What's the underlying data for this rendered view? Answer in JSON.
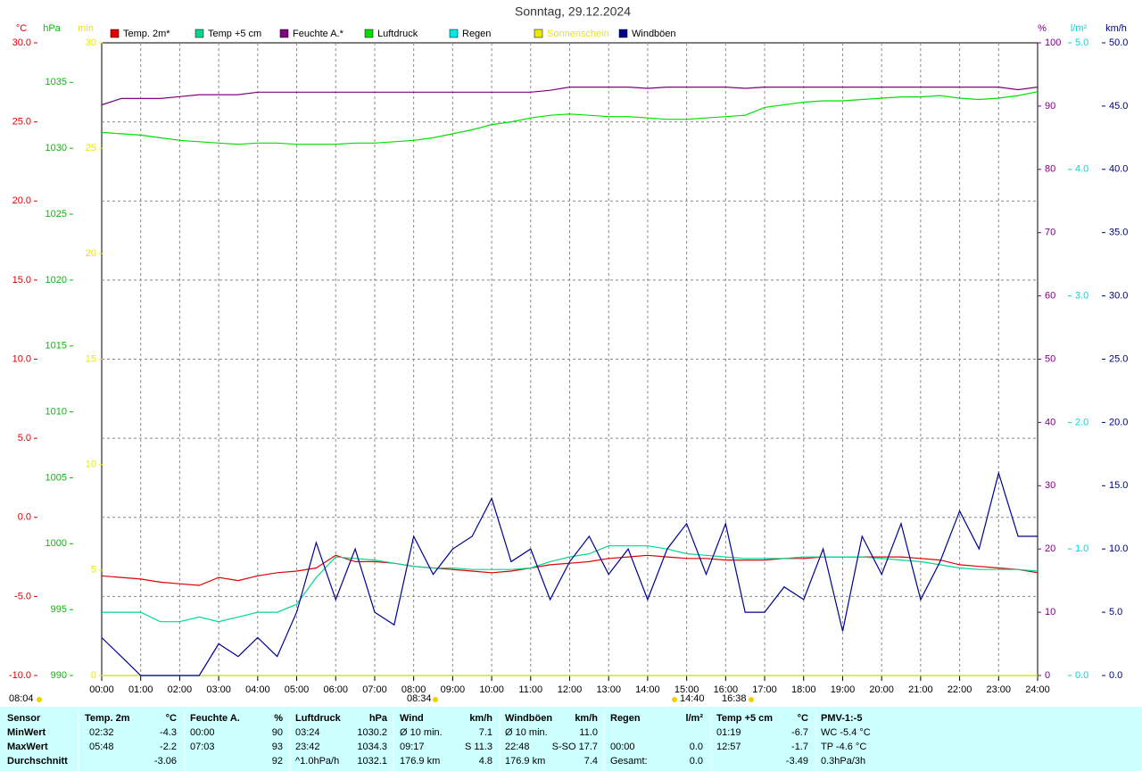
{
  "chart_data": {
    "type": "line",
    "title": "Sonntag, 29.12.2024",
    "x": [
      0,
      0.5,
      1,
      1.5,
      2,
      2.5,
      3,
      3.5,
      4,
      4.5,
      5,
      5.5,
      6,
      6.5,
      7,
      7.5,
      8,
      8.5,
      9,
      9.5,
      10,
      10.5,
      11,
      11.5,
      12,
      12.5,
      13,
      13.5,
      14,
      14.5,
      15,
      15.5,
      16,
      16.5,
      17,
      17.5,
      18,
      18.5,
      19,
      19.5,
      20,
      20.5,
      21,
      21.5,
      22,
      22.5,
      23,
      23.5,
      24
    ],
    "xlim": [
      0,
      24
    ],
    "xticks": [
      {
        "value": 0,
        "label": "00:00"
      },
      {
        "value": 1,
        "label": "01:00"
      },
      {
        "value": 2,
        "label": "02:00"
      },
      {
        "value": 3,
        "label": "03:00"
      },
      {
        "value": 4,
        "label": "04:00"
      },
      {
        "value": 5,
        "label": "05:00"
      },
      {
        "value": 6,
        "label": "06:00"
      },
      {
        "value": 7,
        "label": "07:00"
      },
      {
        "value": 8,
        "label": "08:00"
      },
      {
        "value": 9,
        "label": "09:00"
      },
      {
        "value": 10,
        "label": "10:00"
      },
      {
        "value": 11,
        "label": "11:00"
      },
      {
        "value": 12,
        "label": "12:00"
      },
      {
        "value": 13,
        "label": "13:00"
      },
      {
        "value": 14,
        "label": "14:00"
      },
      {
        "value": 15,
        "label": "15:00"
      },
      {
        "value": 16,
        "label": "16:00"
      },
      {
        "value": 17,
        "label": "17:00"
      },
      {
        "value": 18,
        "label": "18:00"
      },
      {
        "value": 19,
        "label": "19:00"
      },
      {
        "value": 20,
        "label": "20:00"
      },
      {
        "value": 21,
        "label": "21:00"
      },
      {
        "value": 22,
        "label": "22:00"
      },
      {
        "value": 23,
        "label": "23:00"
      },
      {
        "value": 24,
        "label": "24:00"
      }
    ],
    "grid": true,
    "axes": [
      {
        "name": "°C",
        "color": "#e00000",
        "lim": [
          -10,
          30
        ],
        "ticks": [
          {
            "value": -10,
            "label": "-10.0"
          },
          {
            "value": -5,
            "label": "-5.0"
          },
          {
            "value": 0,
            "label": "0.0"
          },
          {
            "value": 5,
            "label": "5.0"
          },
          {
            "value": 10,
            "label": "10.0"
          },
          {
            "value": 15,
            "label": "15.0"
          },
          {
            "value": 20,
            "label": "20.0"
          },
          {
            "value": 25,
            "label": "25.0"
          },
          {
            "value": 30,
            "label": "30.0"
          }
        ]
      },
      {
        "name": "hPa",
        "color": "#00c000",
        "lim": [
          990,
          1038
        ],
        "ticks": [
          990,
          995,
          1000,
          1005,
          1010,
          1015,
          1020,
          1025,
          1030,
          1035
        ]
      },
      {
        "name": "min",
        "color": "#e8e800",
        "lim": [
          0,
          30
        ],
        "ticks": [
          0,
          5,
          10,
          15,
          20,
          25,
          30
        ]
      },
      {
        "name": "%",
        "color": "#800080",
        "lim": [
          0,
          100
        ],
        "ticks": [
          0,
          10,
          20,
          30,
          40,
          50,
          60,
          70,
          80,
          90,
          100
        ]
      },
      {
        "name": "l/m²",
        "color": "#00d8d8",
        "lim": [
          0,
          5
        ],
        "ticks": [
          {
            "value": 0,
            "label": "0.0"
          },
          {
            "value": 1,
            "label": "1.0"
          },
          {
            "value": 2,
            "label": "2.0"
          },
          {
            "value": 3,
            "label": "3.0"
          },
          {
            "value": 4,
            "label": "4.0"
          },
          {
            "value": 5,
            "label": "5.0"
          }
        ]
      },
      {
        "name": "km/h",
        "color": "#000080",
        "lim": [
          0,
          50
        ],
        "ticks": [
          {
            "value": 0,
            "label": "0.0"
          },
          {
            "value": 5,
            "label": "5.0"
          },
          {
            "value": 10,
            "label": "10.0"
          },
          {
            "value": 15,
            "label": "15.0"
          },
          {
            "value": 20,
            "label": "20.0"
          },
          {
            "value": 25,
            "label": "25.0"
          },
          {
            "value": 30,
            "label": "30.0"
          },
          {
            "value": 35,
            "label": "35.0"
          },
          {
            "value": 40,
            "label": "40.0"
          },
          {
            "value": 45,
            "label": "45.0"
          },
          {
            "value": 50,
            "label": "50.0"
          }
        ]
      }
    ],
    "series": [
      {
        "name": "Temp. 2m*",
        "color": "#e00000",
        "axis": 0,
        "values": [
          -3.7,
          -3.8,
          -3.9,
          -4.1,
          -4.2,
          -4.3,
          -3.8,
          -4.0,
          -3.7,
          -3.5,
          -3.4,
          -3.2,
          -2.4,
          -2.8,
          -2.8,
          -2.9,
          -3.1,
          -3.2,
          -3.3,
          -3.4,
          -3.5,
          -3.4,
          -3.2,
          -3.0,
          -2.9,
          -2.8,
          -2.6,
          -2.5,
          -2.4,
          -2.5,
          -2.6,
          -2.6,
          -2.7,
          -2.7,
          -2.7,
          -2.6,
          -2.6,
          -2.5,
          -2.5,
          -2.5,
          -2.5,
          -2.5,
          -2.6,
          -2.7,
          -3.0,
          -3.1,
          -3.2,
          -3.3,
          -3.5
        ]
      },
      {
        "name": "Temp +5 cm",
        "color": "#00d890",
        "axis": 0,
        "values": [
          -6.0,
          -6.0,
          -6.0,
          -6.6,
          -6.6,
          -6.3,
          -6.6,
          -6.3,
          -6.0,
          -6.0,
          -5.5,
          -3.8,
          -2.5,
          -2.6,
          -2.7,
          -2.9,
          -3.1,
          -3.2,
          -3.2,
          -3.3,
          -3.3,
          -3.3,
          -3.2,
          -2.8,
          -2.5,
          -2.3,
          -1.8,
          -1.8,
          -1.8,
          -2.0,
          -2.3,
          -2.4,
          -2.5,
          -2.6,
          -2.6,
          -2.6,
          -2.5,
          -2.5,
          -2.5,
          -2.5,
          -2.6,
          -2.7,
          -2.8,
          -3.0,
          -3.2,
          -3.3,
          -3.3,
          -3.3,
          -3.4
        ]
      },
      {
        "name": "Feuchte A.*",
        "color": "#800080",
        "axis": 3,
        "values": [
          90.2,
          91.2,
          91.2,
          91.2,
          91.5,
          91.8,
          91.8,
          91.8,
          92.2,
          92.2,
          92.2,
          92.2,
          92.2,
          92.2,
          92.2,
          92.2,
          92.2,
          92.2,
          92.2,
          92.2,
          92.2,
          92.2,
          92.2,
          92.5,
          93.0,
          93.0,
          93.0,
          93.0,
          92.8,
          93.0,
          93.0,
          93.0,
          93.0,
          92.8,
          93.0,
          93.0,
          93.0,
          93.0,
          93.0,
          93.0,
          93.0,
          93.0,
          93.0,
          93.0,
          93.0,
          93.0,
          93.0,
          92.6,
          93.0
        ]
      },
      {
        "name": "Luftdruck",
        "color": "#00e000",
        "axis": 1,
        "values": [
          1031.2,
          1031.1,
          1031.0,
          1030.8,
          1030.6,
          1030.5,
          1030.4,
          1030.3,
          1030.4,
          1030.4,
          1030.3,
          1030.3,
          1030.3,
          1030.4,
          1030.4,
          1030.5,
          1030.6,
          1030.8,
          1031.1,
          1031.4,
          1031.8,
          1032.0,
          1032.3,
          1032.5,
          1032.6,
          1032.5,
          1032.4,
          1032.4,
          1032.3,
          1032.2,
          1032.2,
          1032.3,
          1032.4,
          1032.5,
          1033.1,
          1033.3,
          1033.5,
          1033.6,
          1033.6,
          1033.7,
          1033.8,
          1033.9,
          1033.9,
          1034.0,
          1033.8,
          1033.7,
          1033.8,
          1034.0,
          1034.3
        ]
      },
      {
        "name": "Regen",
        "color": "#00e8e8",
        "axis": 4,
        "values": [
          0,
          0,
          0,
          0,
          0,
          0,
          0,
          0,
          0,
          0,
          0,
          0,
          0,
          0,
          0,
          0,
          0,
          0,
          0,
          0,
          0,
          0,
          0,
          0,
          0,
          0,
          0,
          0,
          0,
          0,
          0,
          0,
          0,
          0,
          0,
          0,
          0,
          0,
          0,
          0,
          0,
          0,
          0,
          0,
          0,
          0,
          0,
          0,
          0
        ]
      },
      {
        "name": "Sonnenschein",
        "color": "#e8e800",
        "axis": 2,
        "values": [
          0,
          0,
          0,
          0,
          0,
          0,
          0,
          0,
          0,
          0,
          0,
          0,
          0,
          0,
          0,
          0,
          0,
          0,
          0,
          0,
          0,
          0,
          0,
          0,
          0,
          0,
          0,
          0,
          0,
          0,
          0,
          0,
          0,
          0,
          0,
          0,
          0,
          0,
          0,
          0,
          0,
          0,
          0,
          0,
          0,
          0,
          0,
          0,
          0
        ]
      },
      {
        "name": "Windböen",
        "color": "#000090",
        "axis": 5,
        "values": [
          3.0,
          1.5,
          0,
          0,
          0,
          0,
          2.5,
          1.5,
          3.0,
          1.5,
          5.0,
          10.5,
          6.0,
          10.0,
          5.0,
          4.0,
          11.0,
          8.0,
          10.0,
          11.0,
          14.0,
          9.0,
          10.0,
          6.0,
          9.0,
          11.0,
          8.0,
          10.0,
          6.0,
          10.0,
          12.0,
          8.0,
          12.0,
          5.0,
          5.0,
          7.0,
          6.0,
          10.0,
          3.5,
          11.0,
          8.0,
          12.0,
          6.0,
          9.0,
          13.0,
          10.0,
          16.0,
          11.0,
          11.0
        ]
      }
    ],
    "annotations": [
      "08:04",
      "08:34",
      "14:40",
      "16:38"
    ]
  },
  "table": {
    "header": [
      "Sensor",
      "Temp. 2m",
      "°C",
      "Feuchte A.",
      "%",
      "Luftdruck",
      "hPa",
      "Wind",
      "km/h",
      "Windböen",
      "km/h",
      "Regen",
      "l/m²",
      "Temp +5 cm",
      "°C",
      "PMV-1:-5"
    ],
    "rows": [
      [
        "MinWert",
        "02:32",
        "-4.3",
        "00:00",
        "90",
        "03:24",
        "1030.2",
        "Ø 10 min.",
        "7.1",
        "Ø 10 min.",
        "11.0",
        null,
        null,
        "01:19",
        "-6.7",
        "WC -5.4 °C"
      ],
      [
        "MaxWert",
        "05:48",
        "-2.2",
        "07:03",
        "93",
        "23:42",
        "1034.3",
        "09:17",
        "S 11.3",
        "22:48",
        "S-SO 17.7",
        "00:00",
        "0.0",
        "12:57",
        "-1.7",
        "TP -4.6 °C"
      ],
      [
        "Durchschnitt",
        null,
        "-3.06",
        null,
        "92",
        "^1.0hPa/h",
        "1032.1",
        "176.9 km",
        "4.8",
        "176.9 km",
        "7.4",
        "Gesamt:",
        "0.0",
        null,
        "-3.49",
        "0.3hPa/3h"
      ]
    ]
  }
}
